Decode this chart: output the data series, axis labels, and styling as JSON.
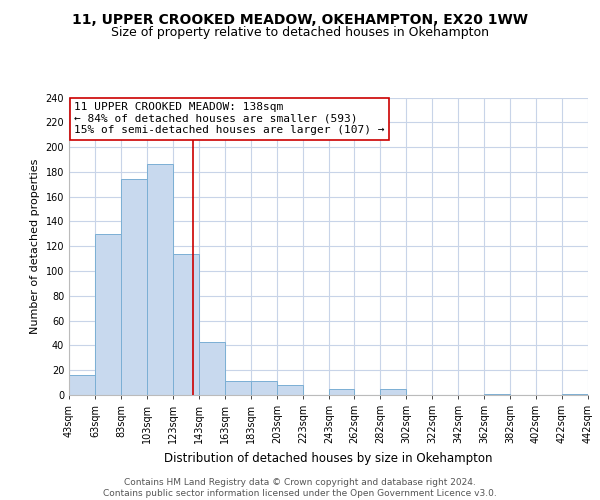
{
  "title": "11, UPPER CROOKED MEADOW, OKEHAMPTON, EX20 1WW",
  "subtitle": "Size of property relative to detached houses in Okehampton",
  "xlabel": "Distribution of detached houses by size in Okehampton",
  "ylabel": "Number of detached properties",
  "bin_edges": [
    43,
    63,
    83,
    103,
    123,
    143,
    163,
    183,
    203,
    223,
    243,
    262,
    282,
    302,
    322,
    342,
    362,
    382,
    402,
    422,
    442
  ],
  "bar_heights": [
    16,
    130,
    174,
    186,
    114,
    43,
    11,
    11,
    8,
    0,
    5,
    0,
    5,
    0,
    0,
    0,
    1,
    0,
    0,
    1
  ],
  "bar_color": "#c8d9ee",
  "bar_edge_color": "#7bafd4",
  "vline_x": 138,
  "vline_color": "#cc0000",
  "annotation_line1": "11 UPPER CROOKED MEADOW: 138sqm",
  "annotation_line2": "← 84% of detached houses are smaller (593)",
  "annotation_line3": "15% of semi-detached houses are larger (107) →",
  "annotation_box_edge_color": "#cc0000",
  "annotation_box_face_color": "#ffffff",
  "ylim": [
    0,
    240
  ],
  "yticks": [
    0,
    20,
    40,
    60,
    80,
    100,
    120,
    140,
    160,
    180,
    200,
    220,
    240
  ],
  "xtick_labels": [
    "43sqm",
    "63sqm",
    "83sqm",
    "103sqm",
    "123sqm",
    "143sqm",
    "163sqm",
    "183sqm",
    "203sqm",
    "223sqm",
    "243sqm",
    "262sqm",
    "282sqm",
    "302sqm",
    "322sqm",
    "342sqm",
    "362sqm",
    "382sqm",
    "402sqm",
    "422sqm",
    "442sqm"
  ],
  "footer_text": "Contains HM Land Registry data © Crown copyright and database right 2024.\nContains public sector information licensed under the Open Government Licence v3.0.",
  "bg_color": "#ffffff",
  "grid_color": "#c8d4e8",
  "title_fontsize": 10,
  "subtitle_fontsize": 9,
  "ylabel_fontsize": 8,
  "xlabel_fontsize": 8.5,
  "annotation_fontsize": 8,
  "tick_fontsize": 7,
  "footer_fontsize": 6.5
}
